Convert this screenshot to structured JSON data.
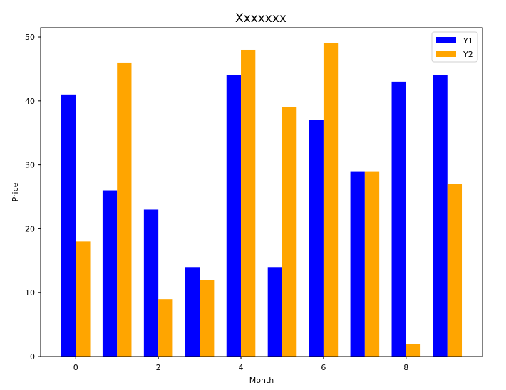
{
  "chart_data": {
    "type": "bar",
    "title": "Xxxxxxx",
    "xlabel": "Month",
    "ylabel": "Price",
    "categories": [
      0,
      1,
      2,
      3,
      4,
      5,
      6,
      7,
      8,
      9
    ],
    "series": [
      {
        "name": "Y1",
        "color": "#0000ff",
        "values": [
          41,
          26,
          23,
          14,
          44,
          14,
          37,
          29,
          43,
          44
        ]
      },
      {
        "name": "Y2",
        "color": "#ffa500",
        "values": [
          18,
          46,
          9,
          12,
          48,
          39,
          49,
          29,
          2,
          27
        ]
      }
    ],
    "xticks": [
      0,
      2,
      4,
      6,
      8
    ],
    "yticks": [
      0,
      10,
      20,
      30,
      40,
      50
    ],
    "xlim": [
      -0.85,
      9.85
    ],
    "ylim": [
      0,
      51.45
    ],
    "bar_width": 0.35,
    "grid": false,
    "legend_position": "upper right"
  }
}
